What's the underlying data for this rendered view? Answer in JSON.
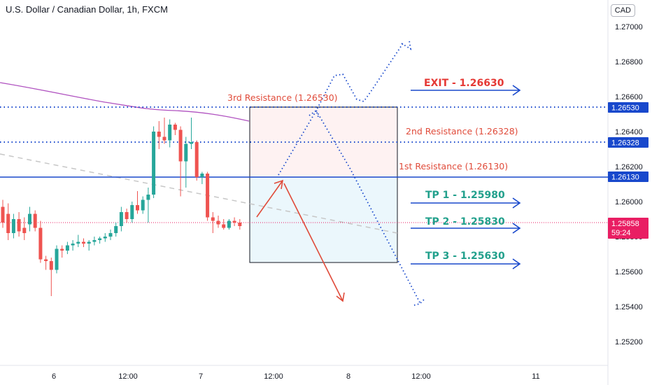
{
  "header": {
    "title": "U.S. Dollar / Canadian Dollar, 1h, FXCM",
    "currency": "CAD"
  },
  "colors": {
    "up": "#26a69a",
    "down": "#ef5350",
    "level_line": "#1848cc",
    "resistance_text": "#e04b3a",
    "tp_text": "#22a08c",
    "exit_text": "#e53935",
    "ma": "#9c27b0",
    "price_tag": "#e91e63"
  },
  "price_axis": {
    "ticks": [
      "1.27000",
      "1.26800",
      "1.26600",
      "1.26400",
      "1.26200",
      "1.26000",
      "1.25800",
      "1.25600",
      "1.25400",
      "1.25200"
    ]
  },
  "time_axis": {
    "ticks": [
      "6",
      "12:00",
      "7",
      "12:00",
      "8",
      "12:00",
      "11"
    ]
  },
  "level_tags": [
    {
      "label": "1.26530",
      "price": 1.2653
    },
    {
      "label": "1.26328",
      "price": 1.26328
    },
    {
      "label": "1.26130",
      "price": 1.2613
    }
  ],
  "current_price": {
    "value": "1.25858",
    "countdown": "59:24",
    "price": 1.25858
  },
  "annotations": {
    "res3": "3rd Resistance (1.26530)",
    "res2": "2nd Resistance (1.26328)",
    "res1": "1st Resistance (1.26130)",
    "exit": "EXIT - 1.26630",
    "tp1": "TP 1 - 1.25980",
    "tp2": "TP 2 - 1.25830",
    "tp3": "TP 3 - 1.25630"
  },
  "chart_data": {
    "type": "candlestick",
    "title": "U.S. Dollar / Canadian Dollar, 1h, FXCM",
    "ylim": [
      1.2512,
      1.2714
    ],
    "levels": {
      "resistance_3": 1.2653,
      "resistance_2": 1.26328,
      "resistance_1": 1.2613,
      "exit": 1.2663,
      "tp1": 1.2598,
      "tp2": 1.2583,
      "tp3": 1.2563
    },
    "candles": [
      {
        "o": 1.2597,
        "h": 1.2601,
        "l": 1.2585,
        "c": 1.2588
      },
      {
        "o": 1.2593,
        "h": 1.2599,
        "l": 1.2578,
        "c": 1.2582
      },
      {
        "o": 1.2582,
        "h": 1.2593,
        "l": 1.2579,
        "c": 1.259
      },
      {
        "o": 1.259,
        "h": 1.2594,
        "l": 1.258,
        "c": 1.2583
      },
      {
        "o": 1.2585,
        "h": 1.2591,
        "l": 1.2578,
        "c": 1.2582
      },
      {
        "o": 1.2587,
        "h": 1.2597,
        "l": 1.2583,
        "c": 1.2593
      },
      {
        "o": 1.2593,
        "h": 1.2595,
        "l": 1.2583,
        "c": 1.2585
      },
      {
        "o": 1.2585,
        "h": 1.2589,
        "l": 1.2565,
        "c": 1.2567
      },
      {
        "o": 1.2567,
        "h": 1.2569,
        "l": 1.2561,
        "c": 1.2566
      },
      {
        "o": 1.2566,
        "h": 1.2568,
        "l": 1.2546,
        "c": 1.2561
      },
      {
        "o": 1.2561,
        "h": 1.2575,
        "l": 1.2559,
        "c": 1.2573
      },
      {
        "o": 1.2573,
        "h": 1.2575,
        "l": 1.2568,
        "c": 1.2572
      },
      {
        "o": 1.2572,
        "h": 1.2577,
        "l": 1.257,
        "c": 1.2575
      },
      {
        "o": 1.2575,
        "h": 1.2578,
        "l": 1.2572,
        "c": 1.2576
      },
      {
        "o": 1.2576,
        "h": 1.2581,
        "l": 1.2574,
        "c": 1.2577
      },
      {
        "o": 1.2577,
        "h": 1.2579,
        "l": 1.2574,
        "c": 1.2576
      },
      {
        "o": 1.2576,
        "h": 1.2578,
        "l": 1.2572,
        "c": 1.2577
      },
      {
        "o": 1.2577,
        "h": 1.258,
        "l": 1.2575,
        "c": 1.2578
      },
      {
        "o": 1.2578,
        "h": 1.258,
        "l": 1.2576,
        "c": 1.2579
      },
      {
        "o": 1.2579,
        "h": 1.2582,
        "l": 1.2577,
        "c": 1.258
      },
      {
        "o": 1.258,
        "h": 1.2584,
        "l": 1.2578,
        "c": 1.2582
      },
      {
        "o": 1.2582,
        "h": 1.2588,
        "l": 1.258,
        "c": 1.2586
      },
      {
        "o": 1.2586,
        "h": 1.2597,
        "l": 1.2583,
        "c": 1.2594
      },
      {
        "o": 1.2594,
        "h": 1.2596,
        "l": 1.2588,
        "c": 1.259
      },
      {
        "o": 1.259,
        "h": 1.26,
        "l": 1.2588,
        "c": 1.2598
      },
      {
        "o": 1.2598,
        "h": 1.2606,
        "l": 1.2593,
        "c": 1.2595
      },
      {
        "o": 1.2595,
        "h": 1.2603,
        "l": 1.2593,
        "c": 1.2601
      },
      {
        "o": 1.2601,
        "h": 1.2608,
        "l": 1.2588,
        "c": 1.2604
      },
      {
        "o": 1.2604,
        "h": 1.2643,
        "l": 1.2602,
        "c": 1.264
      },
      {
        "o": 1.264,
        "h": 1.2646,
        "l": 1.263,
        "c": 1.2637
      },
      {
        "o": 1.2637,
        "h": 1.2648,
        "l": 1.2633,
        "c": 1.2635
      },
      {
        "o": 1.2635,
        "h": 1.2647,
        "l": 1.2631,
        "c": 1.2644
      },
      {
        "o": 1.2644,
        "h": 1.2645,
        "l": 1.2638,
        "c": 1.2641
      },
      {
        "o": 1.2641,
        "h": 1.2643,
        "l": 1.2603,
        "c": 1.2623
      },
      {
        "o": 1.2623,
        "h": 1.2637,
        "l": 1.2608,
        "c": 1.2633
      },
      {
        "o": 1.2633,
        "h": 1.2648,
        "l": 1.263,
        "c": 1.2634
      },
      {
        "o": 1.2634,
        "h": 1.2635,
        "l": 1.2612,
        "c": 1.2614
      },
      {
        "o": 1.2614,
        "h": 1.2617,
        "l": 1.261,
        "c": 1.2616
      },
      {
        "o": 1.2616,
        "h": 1.2617,
        "l": 1.2589,
        "c": 1.2591
      },
      {
        "o": 1.2591,
        "h": 1.2594,
        "l": 1.2582,
        "c": 1.2589
      },
      {
        "o": 1.2589,
        "h": 1.2592,
        "l": 1.2585,
        "c": 1.2587
      },
      {
        "o": 1.2587,
        "h": 1.259,
        "l": 1.2584,
        "c": 1.2585
      },
      {
        "o": 1.2585,
        "h": 1.259,
        "l": 1.2584,
        "c": 1.2589
      },
      {
        "o": 1.2589,
        "h": 1.2591,
        "l": 1.2586,
        "c": 1.2588
      },
      {
        "o": 1.2588,
        "h": 1.259,
        "l": 1.2584,
        "c": 1.2586
      }
    ]
  }
}
